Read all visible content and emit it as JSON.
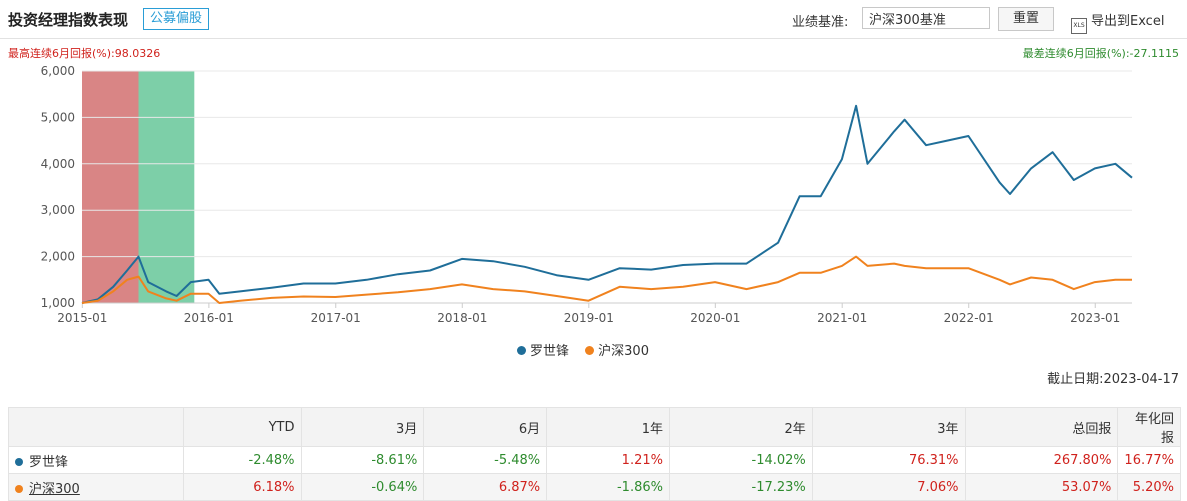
{
  "header": {
    "title": "投资经理指数表现",
    "tag": "公募偏股",
    "benchmark_label": "业绩基准:",
    "benchmark_value": "沪深300基准",
    "reset_label": "重置",
    "export_label": "导出到Excel",
    "export_icon": "XLS"
  },
  "drawdown": {
    "max_label": "最高连续6月回报(%):98.0326",
    "min_label": "最差连续6月回报(%):-27.1115"
  },
  "chart_data": {
    "type": "line",
    "ylim": [
      1000,
      6000
    ],
    "yticks": [
      "1,000",
      "2,000",
      "3,000",
      "4,000",
      "5,000",
      "6,000"
    ],
    "ytick_values": [
      1000,
      2000,
      3000,
      4000,
      5000,
      6000
    ],
    "xticks": [
      "2015-01",
      "2016-01",
      "2017-01",
      "2018-01",
      "2019-01",
      "2020-01",
      "2021-01",
      "2022-01",
      "2023-01"
    ],
    "xlim": [
      "2014-12-31",
      "2023-04-17"
    ],
    "highlight_bands": [
      {
        "start": "2014-12-31",
        "end": "2015-06-12",
        "color": "#d98585"
      },
      {
        "start": "2015-06-12",
        "end": "2015-11-20",
        "color": "#7dcfa8"
      }
    ],
    "series": [
      {
        "name": "罗世锋",
        "color": "#1f6e99",
        "points": [
          [
            "2014-12-31",
            1000
          ],
          [
            "2015-02-15",
            1080
          ],
          [
            "2015-03-31",
            1350
          ],
          [
            "2015-05-10",
            1700
          ],
          [
            "2015-06-12",
            2000
          ],
          [
            "2015-07-10",
            1450
          ],
          [
            "2015-08-31",
            1250
          ],
          [
            "2015-09-30",
            1150
          ],
          [
            "2015-11-10",
            1450
          ],
          [
            "2015-12-31",
            1500
          ],
          [
            "2016-01-31",
            1200
          ],
          [
            "2016-03-31",
            1250
          ],
          [
            "2016-06-30",
            1330
          ],
          [
            "2016-09-30",
            1420
          ],
          [
            "2016-12-31",
            1420
          ],
          [
            "2017-03-31",
            1500
          ],
          [
            "2017-06-30",
            1620
          ],
          [
            "2017-09-30",
            1700
          ],
          [
            "2017-12-31",
            1950
          ],
          [
            "2018-03-31",
            1900
          ],
          [
            "2018-06-30",
            1780
          ],
          [
            "2018-09-30",
            1600
          ],
          [
            "2018-12-31",
            1500
          ],
          [
            "2019-03-31",
            1750
          ],
          [
            "2019-06-30",
            1720
          ],
          [
            "2019-09-30",
            1820
          ],
          [
            "2019-12-31",
            1850
          ],
          [
            "2020-03-31",
            1850
          ],
          [
            "2020-06-30",
            2300
          ],
          [
            "2020-08-31",
            3300
          ],
          [
            "2020-10-31",
            3300
          ],
          [
            "2020-12-31",
            4100
          ],
          [
            "2021-02-10",
            5250
          ],
          [
            "2021-03-15",
            4000
          ],
          [
            "2021-05-31",
            4700
          ],
          [
            "2021-06-30",
            4950
          ],
          [
            "2021-08-31",
            4400
          ],
          [
            "2021-10-31",
            4500
          ],
          [
            "2021-12-31",
            4600
          ],
          [
            "2022-03-31",
            3600
          ],
          [
            "2022-04-30",
            3350
          ],
          [
            "2022-06-30",
            3900
          ],
          [
            "2022-08-31",
            4250
          ],
          [
            "2022-10-31",
            3650
          ],
          [
            "2022-12-31",
            3900
          ],
          [
            "2023-02-28",
            4000
          ],
          [
            "2023-04-17",
            3700
          ]
        ]
      },
      {
        "name": "沪深300",
        "color": "#f0821e",
        "points": [
          [
            "2014-12-31",
            1000
          ],
          [
            "2015-02-15",
            1050
          ],
          [
            "2015-03-31",
            1250
          ],
          [
            "2015-05-10",
            1500
          ],
          [
            "2015-06-12",
            1570
          ],
          [
            "2015-07-10",
            1250
          ],
          [
            "2015-08-31",
            1100
          ],
          [
            "2015-09-30",
            1050
          ],
          [
            "2015-11-10",
            1200
          ],
          [
            "2015-12-31",
            1200
          ],
          [
            "2016-01-31",
            1000
          ],
          [
            "2016-03-31",
            1050
          ],
          [
            "2016-06-30",
            1110
          ],
          [
            "2016-09-30",
            1140
          ],
          [
            "2016-12-31",
            1130
          ],
          [
            "2017-03-31",
            1180
          ],
          [
            "2017-06-30",
            1230
          ],
          [
            "2017-09-30",
            1300
          ],
          [
            "2017-12-31",
            1400
          ],
          [
            "2018-03-31",
            1300
          ],
          [
            "2018-06-30",
            1250
          ],
          [
            "2018-09-30",
            1150
          ],
          [
            "2018-12-31",
            1050
          ],
          [
            "2019-03-31",
            1350
          ],
          [
            "2019-06-30",
            1300
          ],
          [
            "2019-09-30",
            1350
          ],
          [
            "2019-12-31",
            1450
          ],
          [
            "2020-03-31",
            1300
          ],
          [
            "2020-06-30",
            1450
          ],
          [
            "2020-08-31",
            1650
          ],
          [
            "2020-10-31",
            1650
          ],
          [
            "2020-12-31",
            1800
          ],
          [
            "2021-02-10",
            2000
          ],
          [
            "2021-03-15",
            1800
          ],
          [
            "2021-05-31",
            1850
          ],
          [
            "2021-06-30",
            1800
          ],
          [
            "2021-08-31",
            1750
          ],
          [
            "2021-10-31",
            1750
          ],
          [
            "2021-12-31",
            1750
          ],
          [
            "2022-03-31",
            1500
          ],
          [
            "2022-04-30",
            1400
          ],
          [
            "2022-06-30",
            1550
          ],
          [
            "2022-08-31",
            1500
          ],
          [
            "2022-10-31",
            1300
          ],
          [
            "2022-12-31",
            1450
          ],
          [
            "2023-02-28",
            1500
          ],
          [
            "2023-04-17",
            1500
          ]
        ]
      }
    ]
  },
  "legend": [
    {
      "name": "罗世锋",
      "color": "#1f6e99"
    },
    {
      "name": "沪深300",
      "color": "#f0821e"
    }
  ],
  "as_of": "截止日期:2023-04-17",
  "table": {
    "headers": [
      "",
      "YTD",
      "3月",
      "6月",
      "1年",
      "2年",
      "3年",
      "总回报",
      "年化回报"
    ],
    "rows": [
      {
        "name": "罗世锋",
        "color": "#1f6e99",
        "values": [
          "-2.48%",
          "-8.61%",
          "-5.48%",
          "1.21%",
          "-14.02%",
          "76.31%",
          "267.80%",
          "16.77%"
        ]
      },
      {
        "name": "沪深300",
        "color": "#f0821e",
        "values": [
          "6.18%",
          "-0.64%",
          "6.87%",
          "-1.86%",
          "-17.23%",
          "7.06%",
          "53.07%",
          "5.20%"
        ]
      }
    ]
  }
}
